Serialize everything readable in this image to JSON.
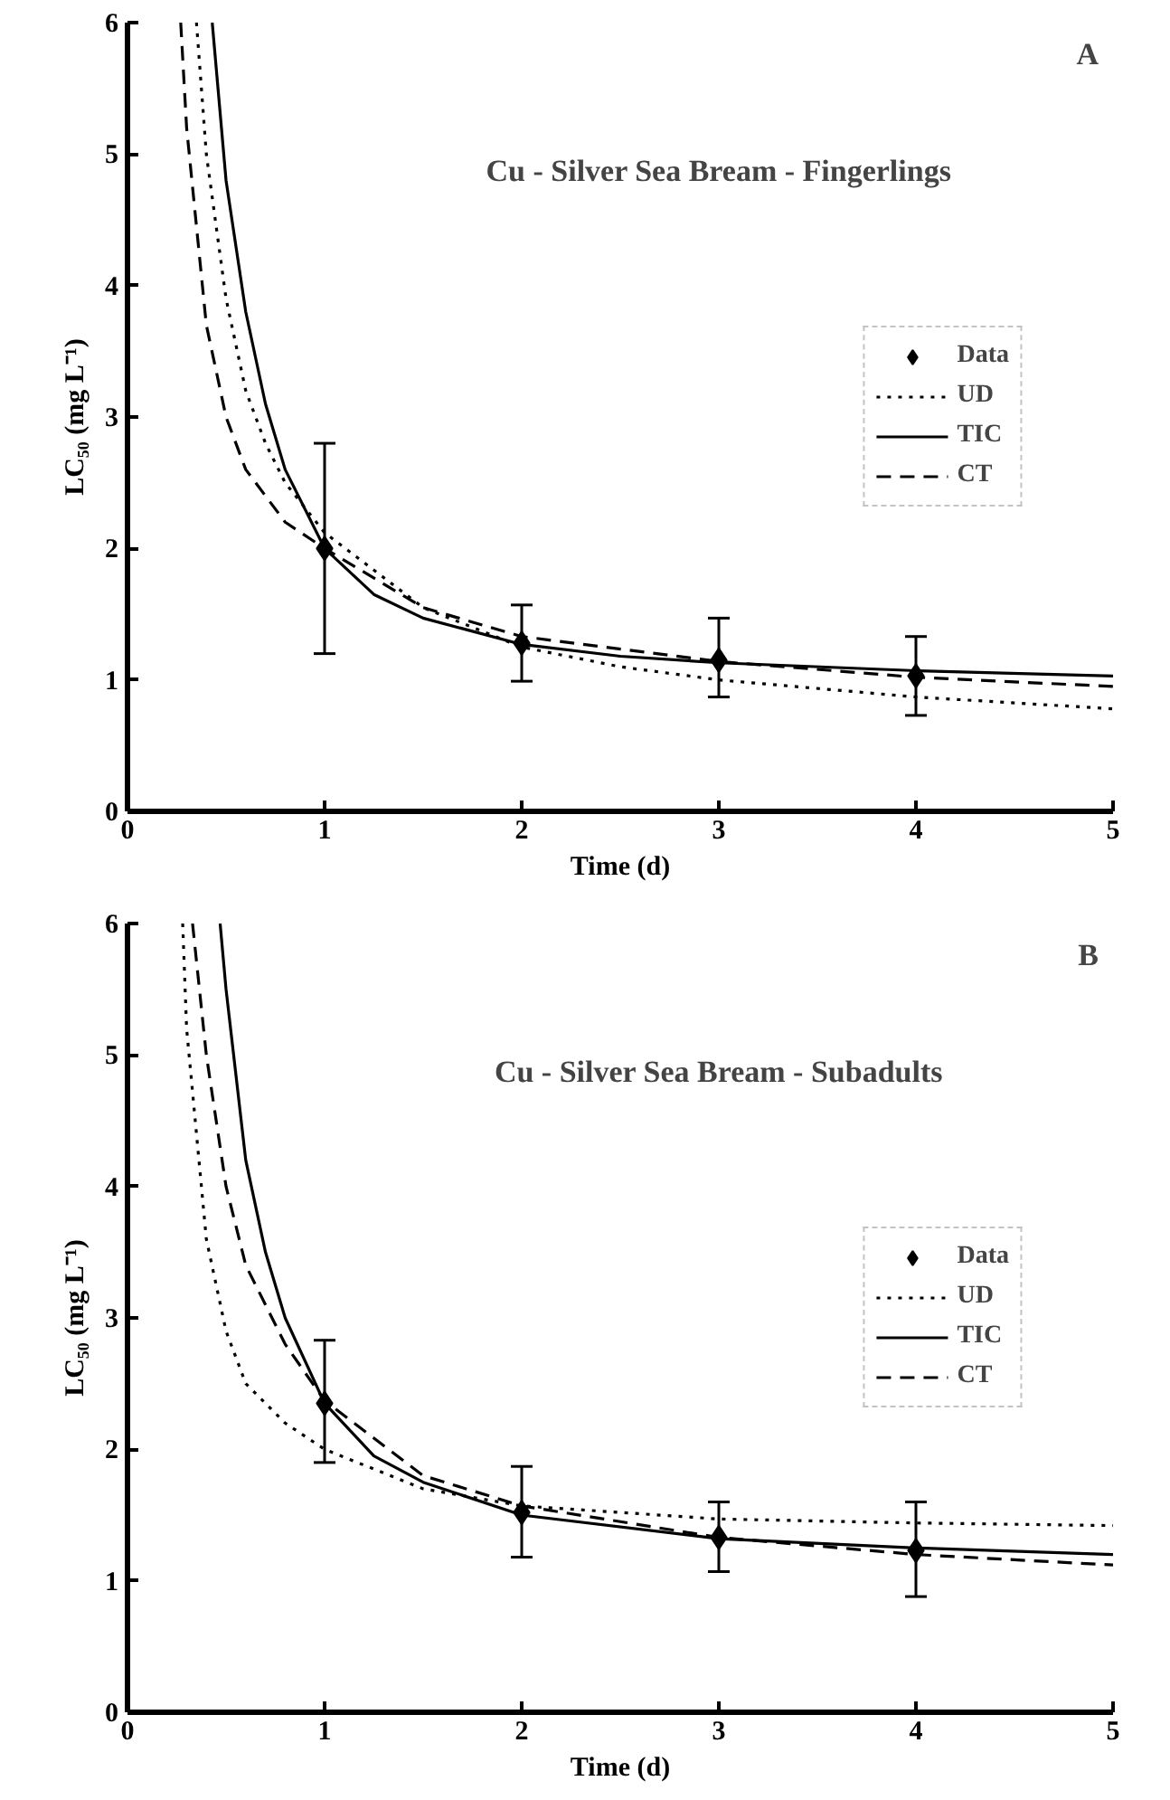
{
  "chart_data": [
    {
      "type": "line",
      "title": "Cu - Silver Sea Bream - Fingerlings",
      "xlabel": "Time (d)",
      "ylabel": "LC₅₀ (mg L⁻¹)",
      "annotations": [
        "A"
      ],
      "xlim": [
        0,
        5
      ],
      "ylim": [
        0,
        6
      ],
      "xticks": [
        0,
        1,
        2,
        3,
        4,
        5
      ],
      "yticks": [
        0,
        1,
        2,
        3,
        4,
        5,
        6
      ],
      "grid": false,
      "legend": "right",
      "series": [
        {
          "name": "Data",
          "type": "scatter",
          "marker": "diamond",
          "color": "#000000",
          "x": [
            1,
            2,
            3,
            4
          ],
          "values": [
            2.0,
            1.28,
            1.15,
            1.03
          ],
          "errors": [
            [
              1.2,
              2.8
            ],
            [
              0.99,
              1.57
            ],
            [
              0.87,
              1.47
            ],
            [
              0.73,
              1.33
            ]
          ]
        },
        {
          "name": "UD",
          "line_style": "dotted",
          "color": "#000000",
          "x": [
            0.35,
            0.4,
            0.5,
            0.6,
            0.7,
            0.8,
            1,
            1.5,
            2,
            2.5,
            3,
            4,
            5
          ],
          "values": [
            6,
            5,
            3.9,
            3.2,
            2.8,
            2.5,
            2.12,
            1.55,
            1.25,
            1.1,
            1.0,
            0.87,
            0.78
          ]
        },
        {
          "name": "TIC",
          "line_style": "solid",
          "color": "#000000",
          "x": [
            0.43,
            0.5,
            0.6,
            0.7,
            0.8,
            1,
            1.25,
            1.5,
            2,
            2.5,
            3,
            4,
            5
          ],
          "values": [
            6,
            4.8,
            3.8,
            3.1,
            2.6,
            2.0,
            1.65,
            1.47,
            1.27,
            1.18,
            1.13,
            1.07,
            1.03
          ]
        },
        {
          "name": "CT",
          "line_style": "dashed",
          "color": "#000000",
          "x": [
            0.27,
            0.3,
            0.4,
            0.5,
            0.6,
            0.8,
            1,
            1.5,
            2,
            3,
            4,
            5
          ],
          "values": [
            6,
            5.2,
            3.7,
            3.0,
            2.6,
            2.2,
            2.0,
            1.55,
            1.33,
            1.14,
            1.02,
            0.95
          ]
        }
      ]
    },
    {
      "type": "line",
      "title": "Cu - Silver Sea Bream - Subadults",
      "xlabel": "Time (d)",
      "ylabel": "LC₅₀ (mg L⁻¹)",
      "annotations": [
        "B"
      ],
      "xlim": [
        0,
        5
      ],
      "ylim": [
        0,
        6
      ],
      "xticks": [
        0,
        1,
        2,
        3,
        4,
        5
      ],
      "yticks": [
        0,
        1,
        2,
        3,
        4,
        5,
        6
      ],
      "grid": false,
      "legend": "right",
      "series": [
        {
          "name": "Data",
          "type": "scatter",
          "marker": "diamond",
          "color": "#000000",
          "x": [
            1,
            2,
            3,
            4
          ],
          "values": [
            2.35,
            1.52,
            1.33,
            1.23
          ],
          "errors": [
            [
              1.9,
              2.83
            ],
            [
              1.18,
              1.87
            ],
            [
              1.07,
              1.6
            ],
            [
              0.88,
              1.6
            ]
          ]
        },
        {
          "name": "UD",
          "line_style": "dotted",
          "color": "#000000",
          "x": [
            0.28,
            0.3,
            0.4,
            0.5,
            0.6,
            0.8,
            1,
            1.5,
            2,
            3,
            4,
            5
          ],
          "values": [
            6,
            5.2,
            3.6,
            2.9,
            2.5,
            2.2,
            2.0,
            1.7,
            1.57,
            1.47,
            1.44,
            1.42
          ]
        },
        {
          "name": "TIC",
          "line_style": "solid",
          "color": "#000000",
          "x": [
            0.47,
            0.5,
            0.6,
            0.7,
            0.8,
            1,
            1.25,
            1.5,
            2,
            3,
            4,
            5
          ],
          "values": [
            6,
            5.5,
            4.2,
            3.5,
            3.0,
            2.35,
            1.95,
            1.75,
            1.5,
            1.32,
            1.25,
            1.2
          ]
        },
        {
          "name": "CT",
          "line_style": "dashed",
          "color": "#000000",
          "x": [
            0.33,
            0.4,
            0.5,
            0.6,
            0.8,
            1,
            1.5,
            2,
            3,
            4,
            5
          ],
          "values": [
            6,
            5.0,
            4.0,
            3.4,
            2.8,
            2.37,
            1.8,
            1.57,
            1.33,
            1.2,
            1.12
          ]
        }
      ]
    }
  ]
}
